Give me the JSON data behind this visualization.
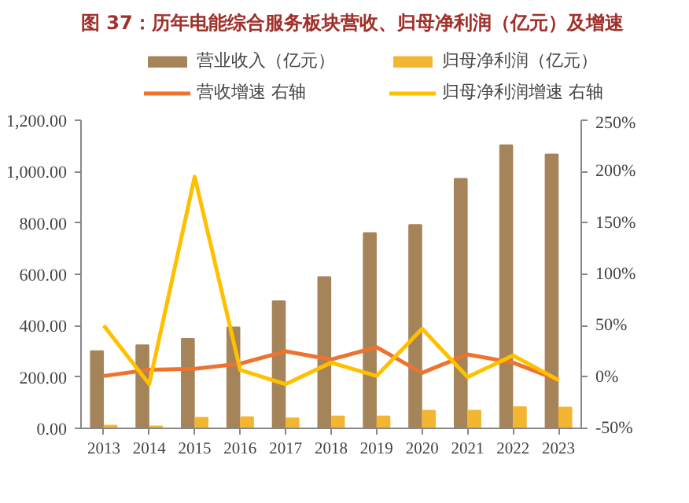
{
  "chart_data": {
    "type": "bar",
    "title": "图 37：历年电能综合服务板块营收、归母净利润（亿元）及增速",
    "categories": [
      "2013",
      "2014",
      "2015",
      "2016",
      "2017",
      "2018",
      "2019",
      "2020",
      "2021",
      "2022",
      "2023"
    ],
    "series": [
      {
        "name": "营业收入（亿元）",
        "color": "#a6845a",
        "values": [
          301,
          324,
          349,
          393,
          495,
          589,
          761,
          792,
          972,
          1103,
          1067
        ]
      },
      {
        "name": "归母净利润（亿元）",
        "color": "#f2b633",
        "values": [
          11,
          8,
          41,
          44,
          39,
          47,
          47,
          69,
          69,
          83,
          81
        ]
      },
      {
        "name": "营收增速 右轴",
        "type": "line",
        "axis": "y2",
        "color": "#ec7430",
        "values": [
          1,
          7,
          8,
          13,
          25,
          17,
          29,
          4,
          22,
          14,
          -3
        ]
      },
      {
        "name": "归母净利润增速 右轴",
        "type": "line",
        "axis": "y2",
        "color": "#ffc000",
        "values": [
          50,
          -7,
          195,
          7,
          -7,
          14,
          1,
          47,
          0,
          21,
          -3
        ]
      }
    ],
    "ylim": [
      0,
      1200
    ],
    "yticks": [
      {
        "value": 0,
        "label": "0.00"
      },
      {
        "value": 200,
        "label": "200.00"
      },
      {
        "value": 400,
        "label": "400.00"
      },
      {
        "value": 600,
        "label": "600.00"
      },
      {
        "value": 800,
        "label": "800.00"
      },
      {
        "value": 1000,
        "label": "1,000.00"
      },
      {
        "value": 1200,
        "label": "1,200.00"
      }
    ],
    "y2lim": [
      -50,
      250
    ],
    "y2ticks": [
      {
        "value": -50,
        "label": "-50%"
      },
      {
        "value": 0,
        "label": "0%"
      },
      {
        "value": 50,
        "label": "50%"
      },
      {
        "value": 100,
        "label": "100%"
      },
      {
        "value": 150,
        "label": "150%"
      },
      {
        "value": 200,
        "label": "200%"
      },
      {
        "value": 250,
        "label": "250%"
      }
    ],
    "grid": false,
    "legend": "top"
  }
}
